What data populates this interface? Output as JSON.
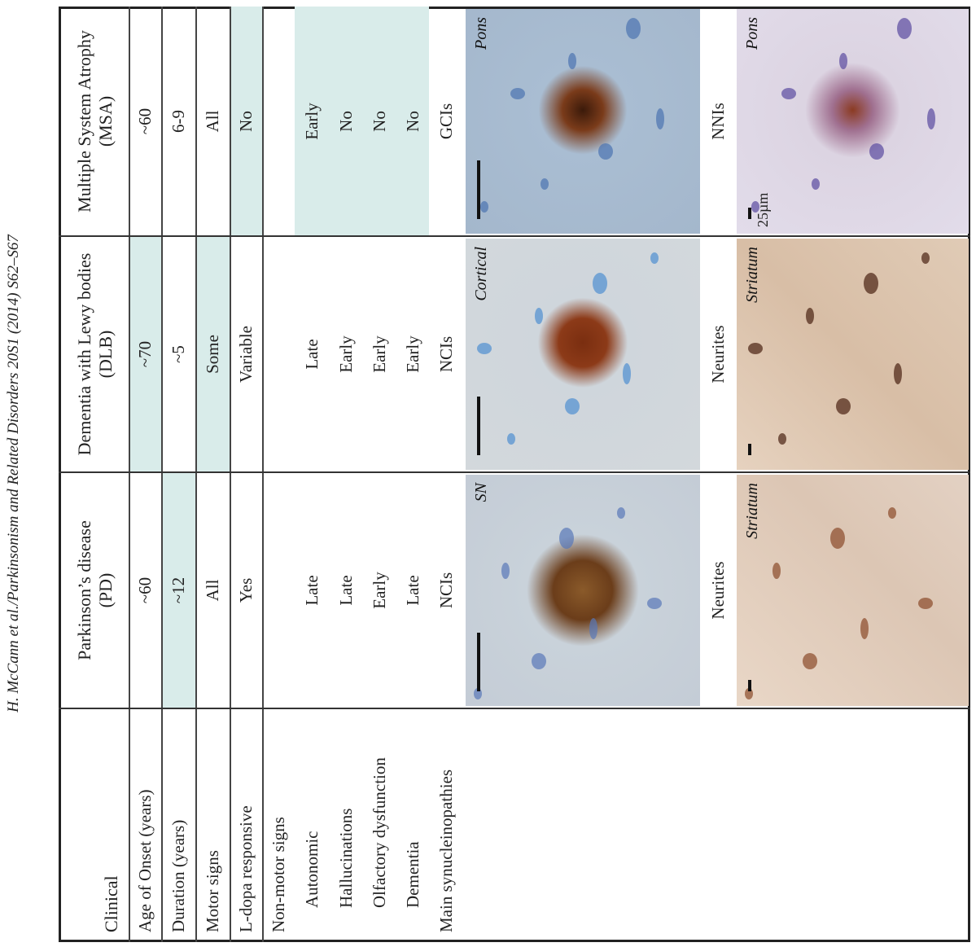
{
  "running_header": "H. McCann et al./Parkinsonism and Related Disorders 20S1 (2014) S62–S67",
  "table": {
    "columns": [
      {
        "name": "Clinical"
      },
      {
        "name": "Parkinson’s disease",
        "abbr": "(PD)"
      },
      {
        "name": "Dementia with Lewy bodies",
        "abbr": "(DLB)"
      },
      {
        "name": "Multiple System Atrophy",
        "abbr": "(MSA)"
      }
    ],
    "rows": [
      {
        "label": "Age of Onset (years)",
        "values": [
          "~60",
          "~70",
          "~60"
        ],
        "shaded": [
          2
        ]
      },
      {
        "label": "Duration (years)",
        "values": [
          "~12",
          "~5",
          "6-9"
        ],
        "shaded": [
          1
        ]
      },
      {
        "label": "Motor signs",
        "values": [
          "All",
          "Some",
          "All"
        ],
        "shaded": [
          2
        ]
      },
      {
        "label": "L-dopa responsive",
        "values": [
          "Yes",
          "Variable",
          "No"
        ],
        "shaded": [
          3
        ]
      },
      {
        "label": "Non-motor signs"
      },
      {
        "label": "Autonomic",
        "values": [
          "Late",
          "Late",
          "Early"
        ],
        "shaded": [
          3
        ],
        "sub": true
      },
      {
        "label": "Hallucinations",
        "values": [
          "Late",
          "Early",
          "No"
        ],
        "shaded": [
          3
        ],
        "sub": true
      },
      {
        "label": "Olfactory dysfunction",
        "values": [
          "Early",
          "Early",
          "No"
        ],
        "shaded": [
          3
        ],
        "sub": true
      },
      {
        "label": "Dementia",
        "values": [
          "Late",
          "Early",
          "No"
        ],
        "shaded": [
          3
        ],
        "sub": true
      },
      {
        "label": "Main synucleinopathies",
        "values": [
          "NCIs",
          "NCIs",
          "GCIs"
        ]
      }
    ],
    "stains_1": [
      {
        "region": "SN"
      },
      {
        "region": "Cortical"
      },
      {
        "region": "Pons"
      }
    ],
    "stain_row_2": [
      "Neurites",
      "Neurites",
      "NNIs"
    ],
    "stains_2": [
      {
        "region": "Striatum"
      },
      {
        "region": "Striatum"
      },
      {
        "region": "Pons",
        "scale": "25µm"
      }
    ]
  }
}
